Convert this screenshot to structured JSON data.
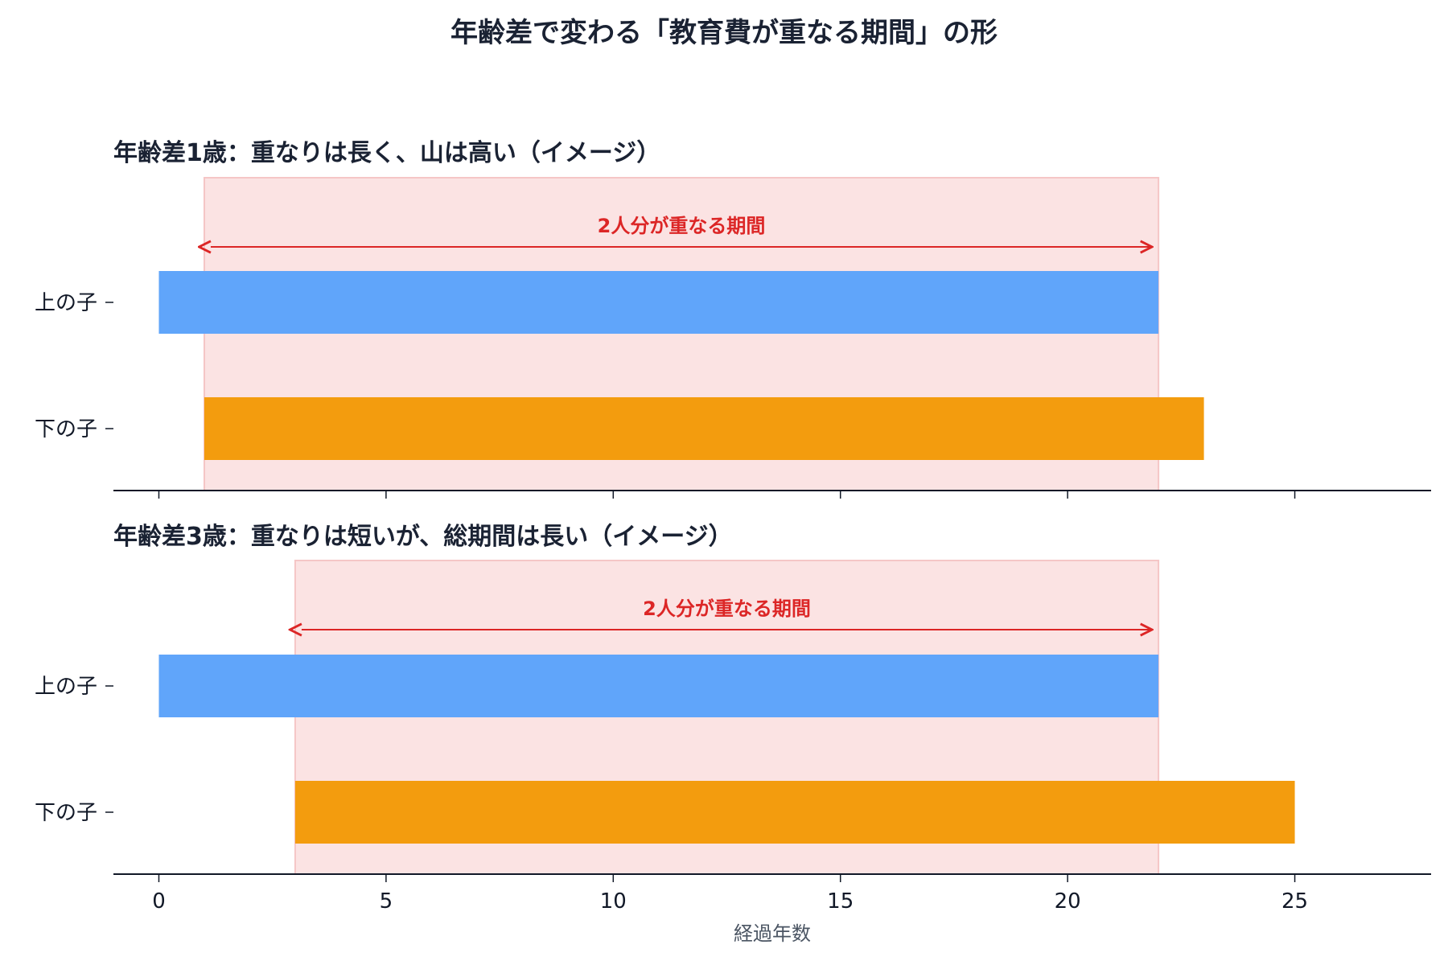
{
  "title": "年齢差で変わる「教育費が重なる期間」の形",
  "colors": {
    "older": "#60a5fa",
    "younger": "#f39c0e",
    "overlap_fill": "#fbe3e3",
    "overlap_stroke": "#f5c6c6",
    "overlap_label": "#dc2626",
    "axis": "#111827"
  },
  "chart_data": [
    {
      "type": "bar",
      "orientation": "horizontal",
      "title": "年齢差1歳：重なりは長く、山は高い（イメージ）",
      "categories": [
        "上の子",
        "下の子"
      ],
      "series": [
        {
          "category": "上の子",
          "start": 0,
          "end": 22
        },
        {
          "category": "下の子",
          "start": 1,
          "end": 23
        }
      ],
      "overlap": {
        "start": 1,
        "end": 22,
        "label": "2人分が重なる期間"
      },
      "xlim": [
        -1,
        28
      ],
      "xticks": [
        0,
        5,
        10,
        15,
        20,
        25
      ]
    },
    {
      "type": "bar",
      "orientation": "horizontal",
      "title": "年齢差3歳：重なりは短いが、総期間は長い（イメージ）",
      "categories": [
        "上の子",
        "下の子"
      ],
      "series": [
        {
          "category": "上の子",
          "start": 0,
          "end": 22
        },
        {
          "category": "下の子",
          "start": 3,
          "end": 25
        }
      ],
      "overlap": {
        "start": 3,
        "end": 22,
        "label": "2人分が重なる期間"
      },
      "xlim": [
        -1,
        28
      ],
      "xticks": [
        0,
        5,
        10,
        15,
        20,
        25
      ],
      "xlabel": "経過年数"
    }
  ]
}
